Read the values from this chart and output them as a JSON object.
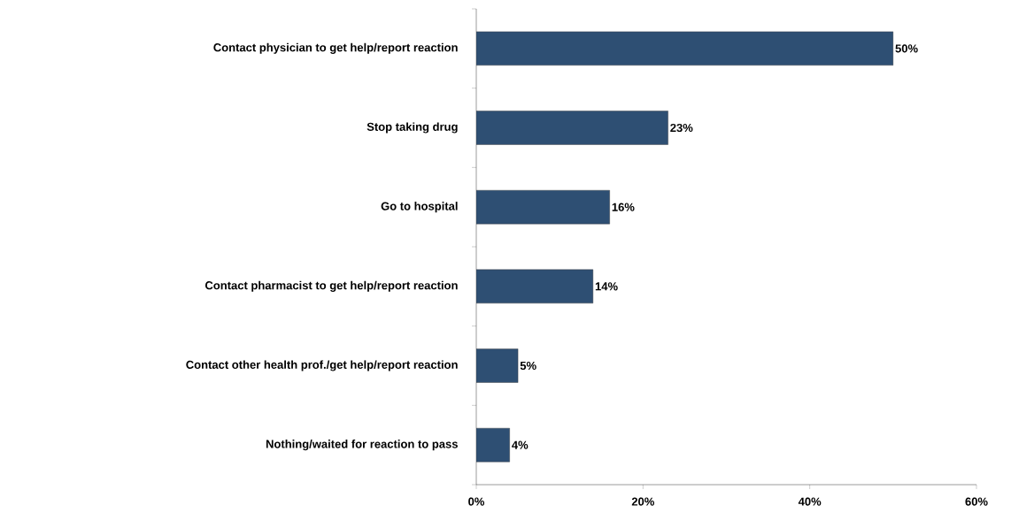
{
  "chart_data": {
    "type": "bar",
    "orientation": "horizontal",
    "categories": [
      "Contact physician to get help/report reaction",
      "Stop taking drug",
      "Go to hospital",
      "Contact pharmacist to get help/report reaction",
      "Contact other health prof./get help/report reaction",
      "Nothing/waited for reaction to pass"
    ],
    "values": [
      50,
      23,
      16,
      14,
      5,
      4
    ],
    "value_labels": [
      "50%",
      "23%",
      "16%",
      "14%",
      "5%",
      "4%"
    ],
    "color": "#2e4f73",
    "xlim": [
      0,
      60
    ],
    "xticks": [
      {
        "value": 0,
        "label": "0%"
      },
      {
        "value": 20,
        "label": "20%"
      },
      {
        "value": 40,
        "label": "40%"
      },
      {
        "value": 60,
        "label": "60%"
      }
    ],
    "grid": false
  }
}
